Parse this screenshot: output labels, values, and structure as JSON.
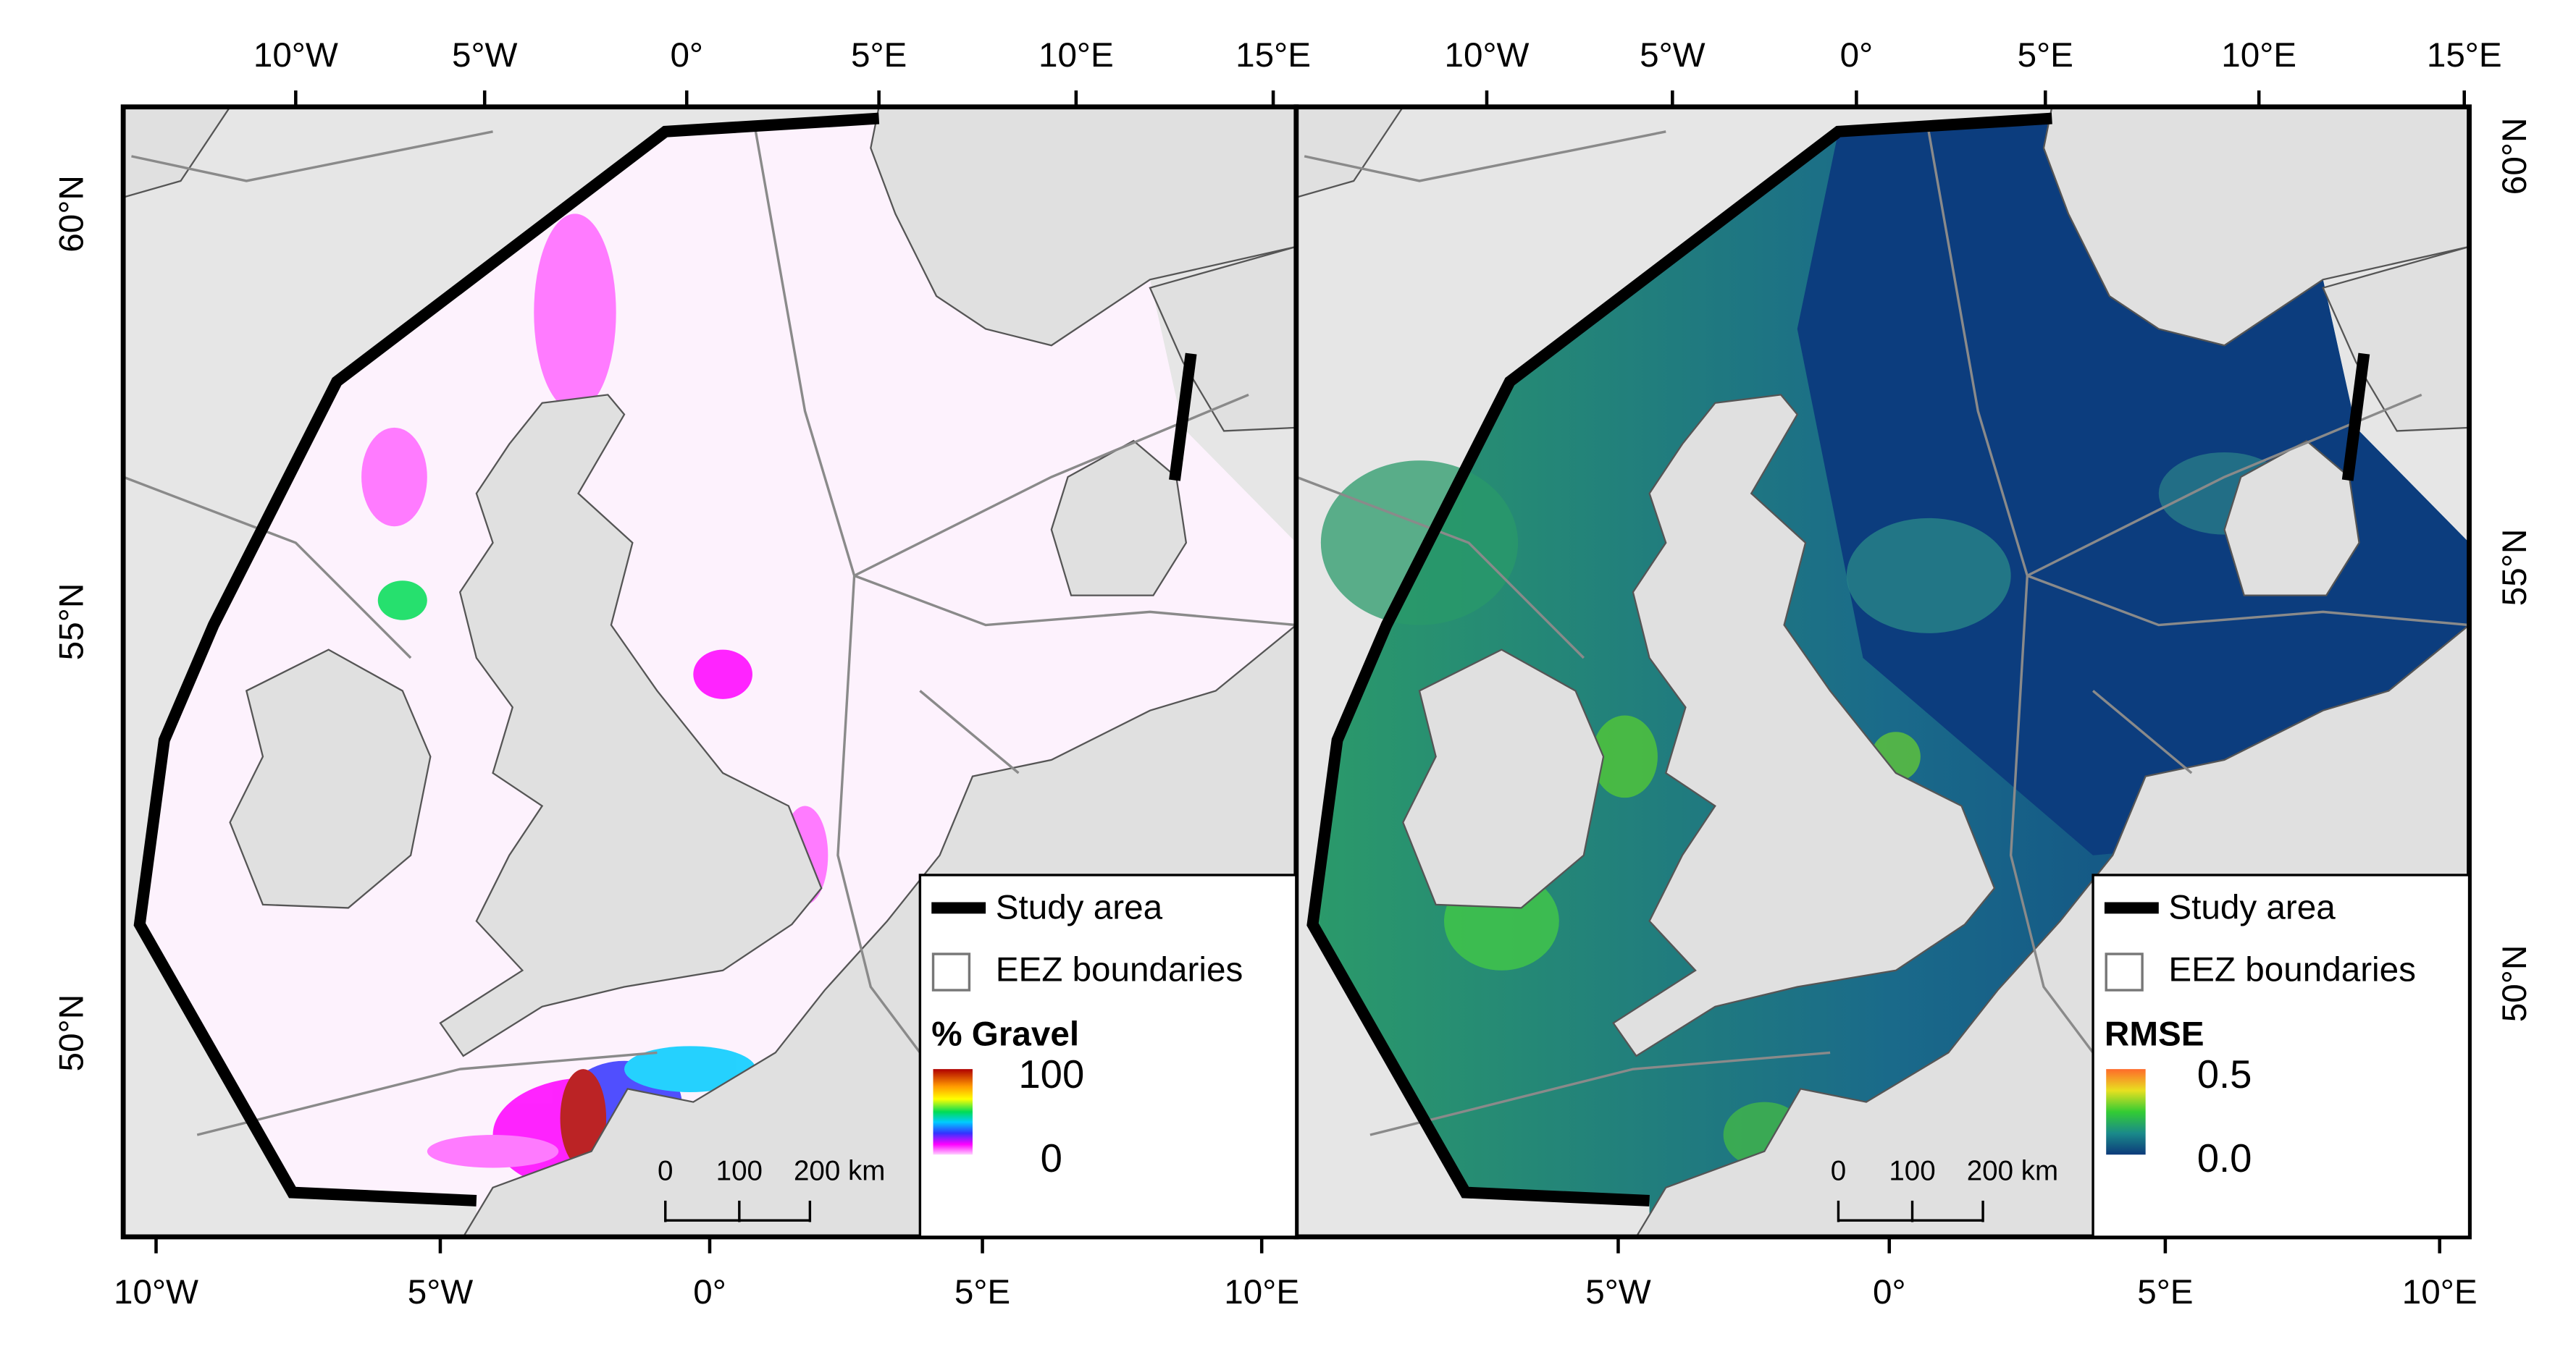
{
  "panels": [
    {
      "top_ticks": [
        "10°W",
        "5°W",
        "0°",
        "5°E",
        "10°E",
        "15°E"
      ],
      "bottom_ticks": [
        "10°W",
        "5°W",
        "0°",
        "5°E",
        "10°E"
      ],
      "side_ticks": [
        "60°N",
        "55°N",
        "50°N"
      ],
      "legend": {
        "items": [
          "Study area",
          "EEZ boundaries"
        ],
        "title": "% Gravel",
        "max": "100",
        "min": "0"
      },
      "scale_bar": [
        "0",
        "100",
        "200 km"
      ]
    },
    {
      "top_ticks": [
        "10°W",
        "5°W",
        "0°",
        "5°E",
        "10°E",
        "15°E"
      ],
      "bottom_ticks": [
        "5°W",
        "0°",
        "5°E",
        "10°E"
      ],
      "side_ticks": [
        "60°N",
        "55°N",
        "50°N"
      ],
      "legend": {
        "items": [
          "Study area",
          "EEZ boundaries"
        ],
        "title": "RMSE",
        "max": "0.5",
        "min": "0.0"
      },
      "scale_bar": [
        "0",
        "100",
        "200 km"
      ]
    }
  ]
}
